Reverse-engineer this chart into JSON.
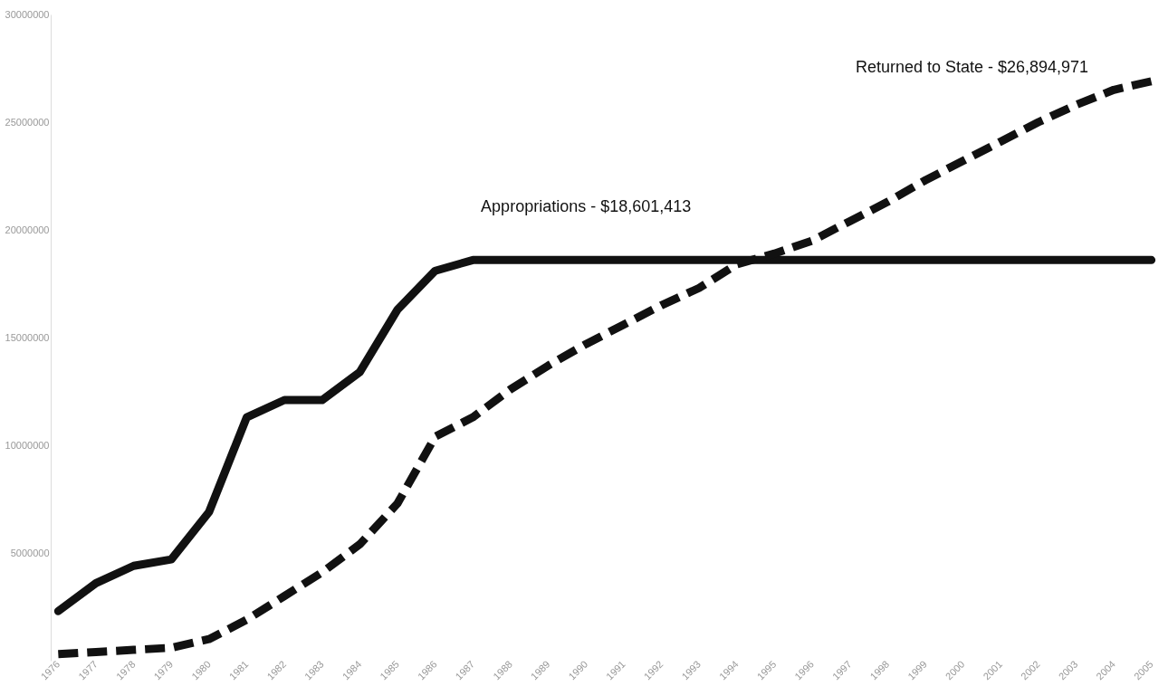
{
  "chart_data": {
    "type": "line",
    "categories": [
      "1976",
      "1977",
      "1978",
      "1979",
      "1980",
      "1981",
      "1982",
      "1983",
      "1984",
      "1985",
      "1986",
      "1987",
      "1988",
      "1989",
      "1990",
      "1991",
      "1992",
      "1993",
      "1994",
      "1995",
      "1996",
      "1997",
      "1998",
      "1999",
      "2000",
      "2001",
      "2002",
      "2003",
      "2004",
      "2005"
    ],
    "series": [
      {
        "color": "#111111",
        "line_style": "solid",
        "values": [
          2300000,
          3600000,
          4400000,
          4700000,
          6900000,
          11300000,
          12100000,
          12100000,
          13400000,
          16300000,
          18100000,
          18600000,
          18600000,
          18600000,
          18600000,
          18600000,
          18600000,
          18600000,
          18600000,
          18600000,
          18600000,
          18600000,
          18600000,
          18600000,
          18600000,
          18600000,
          18600000,
          18600000,
          18600000,
          18600000
        ]
      },
      {
        "color": "#111111",
        "line_style": "dashed",
        "values": [
          300000,
          400000,
          500000,
          600000,
          1000000,
          1900000,
          3000000,
          4100000,
          5400000,
          7300000,
          10400000,
          11300000,
          12600000,
          13700000,
          14700000,
          15600000,
          16500000,
          17300000,
          18400000,
          18900000,
          19500000,
          20400000,
          21300000,
          22300000,
          23200000,
          24100000,
          25000000,
          25800000,
          26500000,
          26900000
        ]
      }
    ],
    "ylim": [
      0,
      30000000
    ],
    "yticks": [
      5000000,
      10000000,
      15000000,
      20000000,
      25000000,
      30000000
    ],
    "annotations": [
      "Appropriations - $18,601,413",
      "Returned to State - $26,894,971"
    ],
    "grid": false,
    "marker": "none"
  }
}
